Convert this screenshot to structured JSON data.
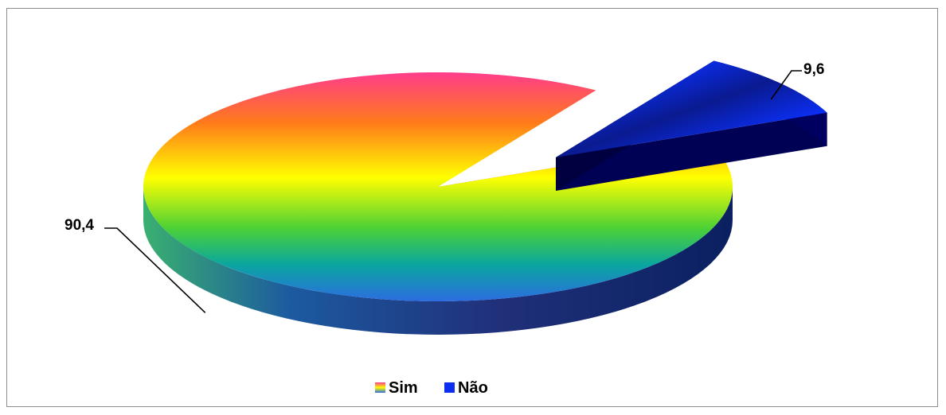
{
  "chart_data": {
    "type": "pie",
    "title": "",
    "categories": [
      "Sim",
      "Não"
    ],
    "values": [
      90.4,
      9.6
    ],
    "data_labels": [
      "90,4",
      "9,6"
    ],
    "legend": {
      "placement": "bottom",
      "entries": [
        "Sim",
        "Não"
      ]
    },
    "colors": {
      "sim_gradient": [
        "#ff3d8b",
        "#ff7a1a",
        "#ffff00",
        "#4cd136",
        "#0aa6a0",
        "#2c6de0"
      ],
      "nao_gradient": [
        "#0a1a8c",
        "#0030f0",
        "#0a1a8c"
      ],
      "sim_side": "#1c3a8c",
      "nao_side": "#000050"
    }
  }
}
